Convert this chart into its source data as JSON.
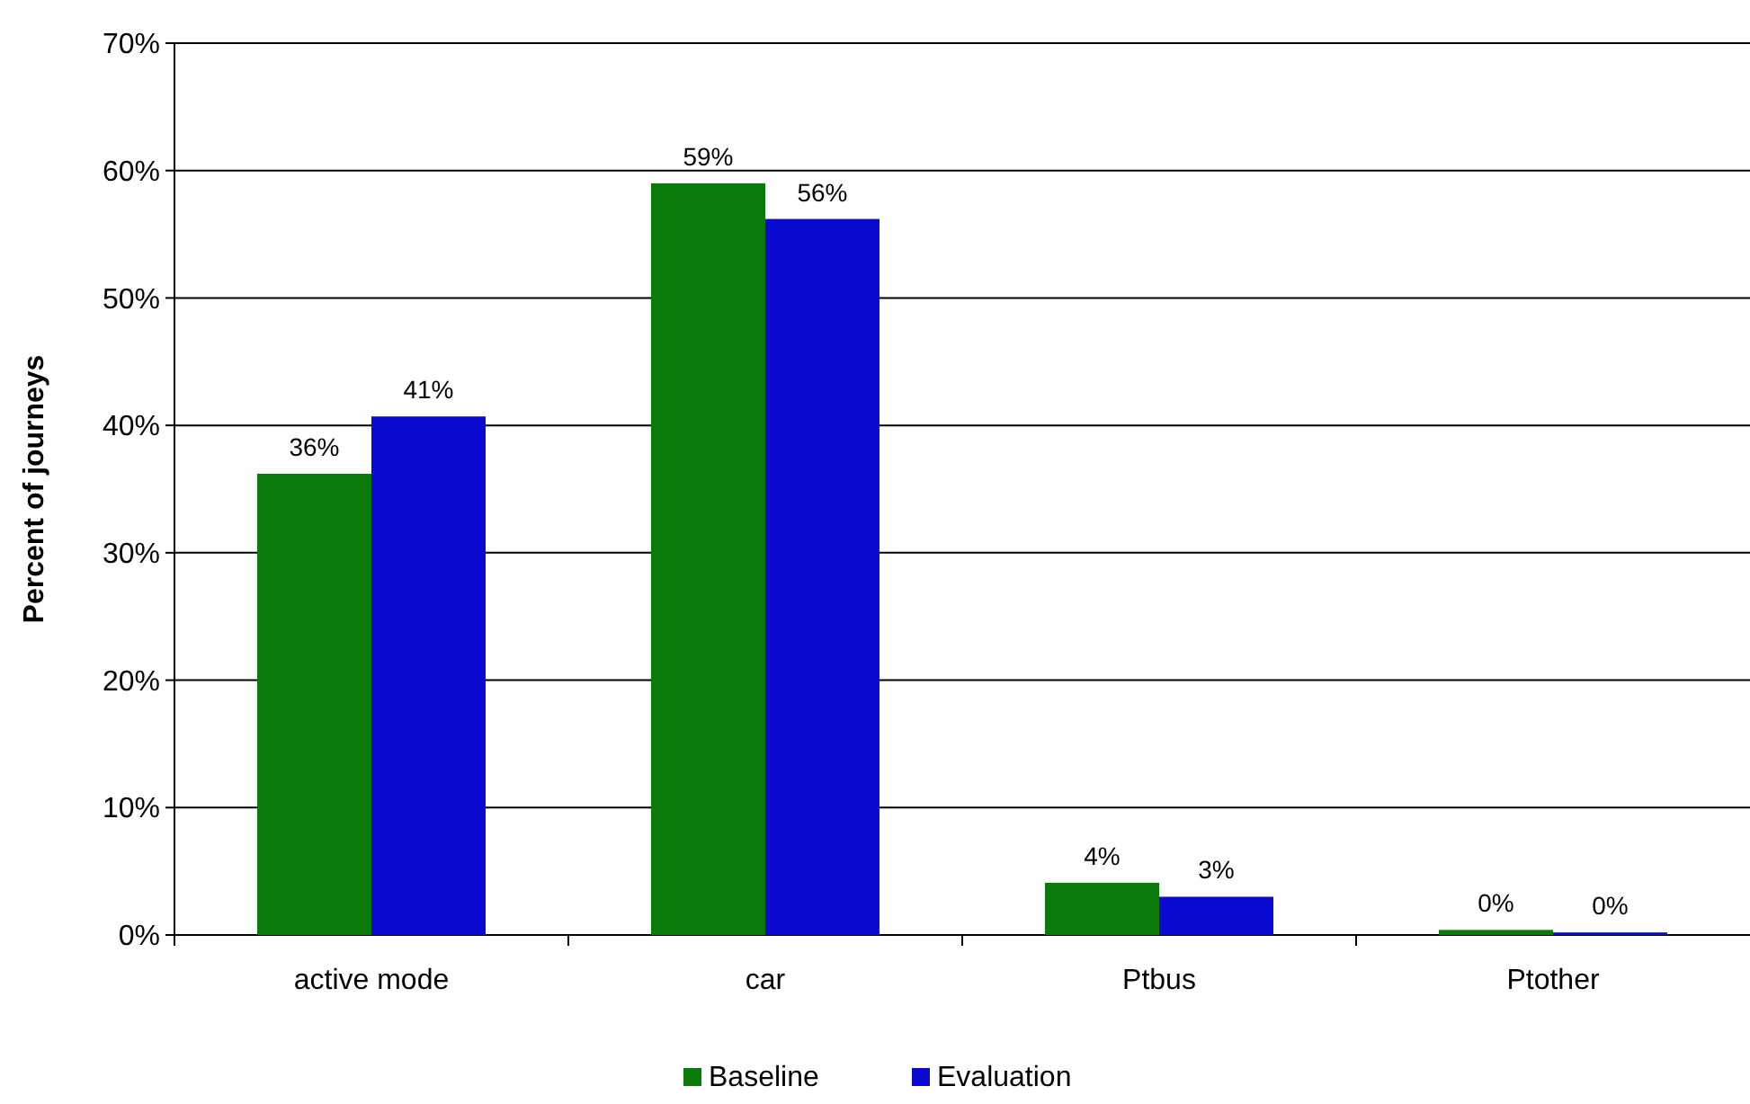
{
  "chart_data": {
    "type": "bar",
    "ylabel": "Percent of journeys",
    "categories": [
      "active mode",
      "car",
      "Ptbus",
      "Ptother"
    ],
    "series": [
      {
        "name": "Baseline",
        "color": "#0a7a0a",
        "values": [
          36.2,
          59,
          4.1,
          0.4
        ],
        "value_labels": [
          "36%",
          "59%",
          "4%",
          "0%"
        ]
      },
      {
        "name": "Evaluation",
        "color": "#0a0ad0",
        "values": [
          40.7,
          56.2,
          3,
          0.2
        ],
        "value_labels": [
          "41%",
          "56%",
          "3%",
          "0%"
        ]
      }
    ],
    "ylim": [
      0,
      70
    ],
    "yticks": [
      {
        "value": 0,
        "label": "0%"
      },
      {
        "value": 10,
        "label": "10%"
      },
      {
        "value": 20,
        "label": "20%"
      },
      {
        "value": 30,
        "label": "30%"
      },
      {
        "value": 40,
        "label": "40%"
      },
      {
        "value": 50,
        "label": "50%"
      },
      {
        "value": 60,
        "label": "60%"
      },
      {
        "value": 70,
        "label": "70%"
      }
    ],
    "grid": "y",
    "legend": "bottom"
  }
}
